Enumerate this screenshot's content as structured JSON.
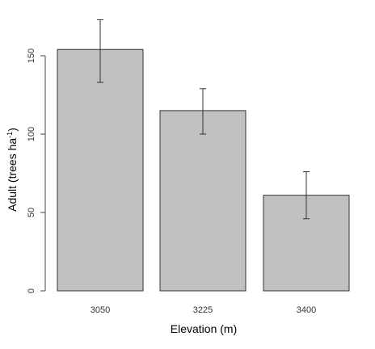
{
  "chart_data": {
    "type": "bar",
    "title": "",
    "xlabel": "Elevation (m)",
    "ylabel_main": "Adult (trees ha",
    "ylabel_sup": "-1",
    "ylabel_close": ")",
    "ylim": [
      0,
      160
    ],
    "yticks": [
      0,
      50,
      100,
      150
    ],
    "ytick_labels": [
      "0",
      "50",
      "100",
      "150"
    ],
    "categories": [
      "3050",
      "3225",
      "3400"
    ],
    "values": [
      154,
      115,
      61
    ],
    "error_lower": [
      133,
      100,
      46
    ],
    "error_upper": [
      173,
      129,
      76
    ],
    "bar_color": "#c0c0c0",
    "bar_stroke": "#333333",
    "axis_color": "#444444",
    "grid": false,
    "legend": "none"
  }
}
